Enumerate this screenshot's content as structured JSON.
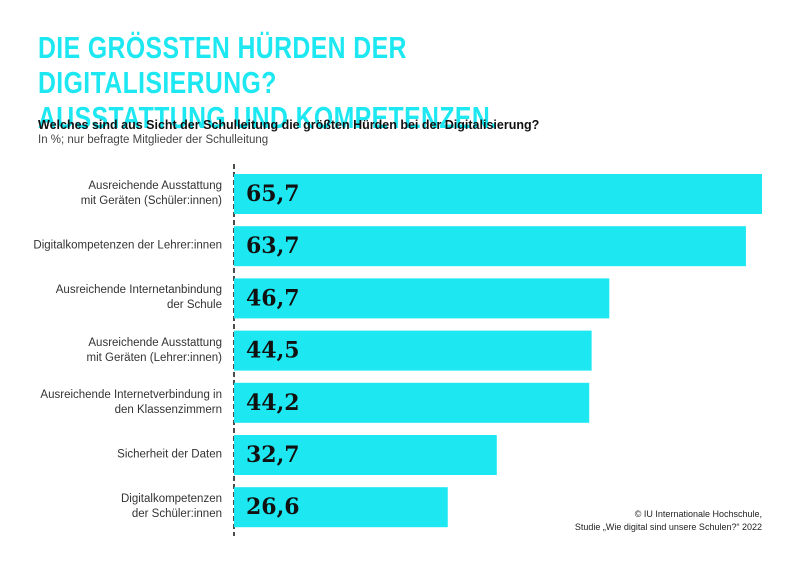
{
  "chart_data": {
    "type": "bar",
    "orientation": "horizontal",
    "title": "DIE GRÖSSTEN HÜRDEN DER DIGITALISIERUNG?\nAUSSTATTUNG UND KOMPETENZEN.",
    "question": "Welches sind aus Sicht der Schulleitung die größten Hürden bei der Digitalisierung?",
    "note": "In %; nur befragte Mitglieder der Schulleitung",
    "source": "© IU Internationale Hochschule,\nStudie „Wie digital sind unsere Schulen?“ 2022",
    "categories": [
      "Ausreichende Ausstattung\nmit Geräten (Schüler:innen)",
      "Digitalkompetenzen der Lehrer:innen",
      "Ausreichende Internetanbindung\nder Schule",
      "Ausreichende Ausstattung\nmit Geräten (Lehrer:innen)",
      "Ausreichende Internetverbindung in\nden Klassenzimmern",
      "Sicherheit der Daten",
      "Digitalkompetenzen\nder Schüler:innen"
    ],
    "values": [
      65.7,
      63.7,
      46.7,
      44.5,
      44.2,
      32.7,
      26.6
    ],
    "value_labels": [
      "65,7",
      "63,7",
      "46,7",
      "44,5",
      "44,2",
      "32,7",
      "26,6"
    ],
    "color": "#1de8f2",
    "title_color": "#1de8f2"
  }
}
